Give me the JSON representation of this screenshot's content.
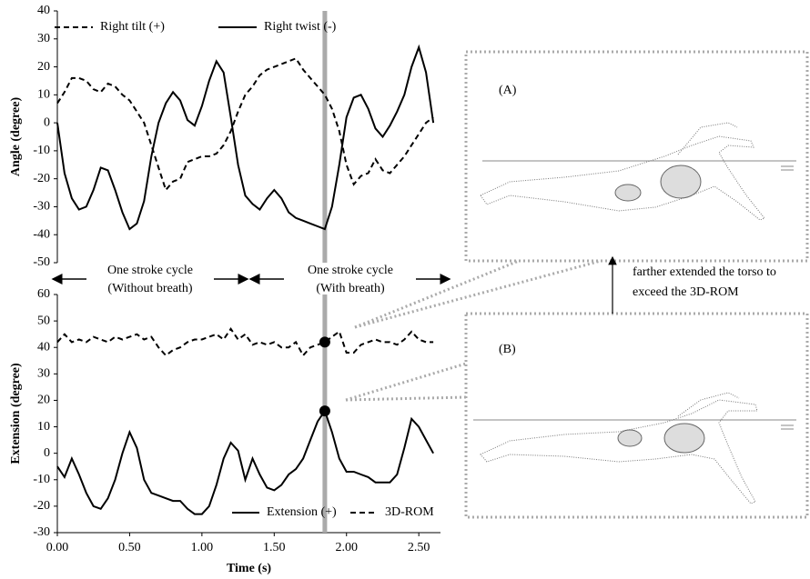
{
  "chart_data": [
    {
      "type": "line",
      "ylabel": "Angle (degree)",
      "x": [
        0,
        0.05,
        0.1,
        0.15,
        0.2,
        0.25,
        0.3,
        0.35,
        0.4,
        0.45,
        0.5,
        0.55,
        0.6,
        0.65,
        0.7,
        0.75,
        0.8,
        0.85,
        0.9,
        0.95,
        1.0,
        1.05,
        1.1,
        1.15,
        1.2,
        1.25,
        1.3,
        1.35,
        1.4,
        1.45,
        1.5,
        1.55,
        1.6,
        1.65,
        1.7,
        1.75,
        1.8,
        1.85,
        1.9,
        1.95,
        2.0,
        2.05,
        2.1,
        2.15,
        2.2,
        2.25,
        2.3,
        2.35,
        2.4,
        2.45,
        2.5,
        2.55,
        2.6
      ],
      "series": [
        {
          "name": "Right tilt (+)",
          "color": "#000000",
          "dash": true,
          "values": [
            7,
            11,
            16,
            16,
            15,
            12,
            11,
            14,
            13,
            10,
            8,
            4,
            0,
            -8,
            -16,
            -24,
            -21,
            -20,
            -14,
            -13,
            -12,
            -12,
            -11,
            -8,
            -3,
            4,
            10,
            13,
            17,
            19,
            20,
            21,
            22,
            23,
            19,
            16,
            13,
            10,
            5,
            -3,
            -15,
            -22,
            -19,
            -18,
            -13,
            -17,
            -18,
            -15,
            -12,
            -8,
            -4,
            0,
            2
          ]
        },
        {
          "name": "Right twist (-)",
          "color": "#000000",
          "dash": false,
          "values": [
            0,
            -18,
            -27,
            -31,
            -30,
            -24,
            -16,
            -17,
            -24,
            -32,
            -38,
            -36,
            -28,
            -12,
            0,
            7,
            11,
            8,
            1,
            -1,
            6,
            15,
            22,
            18,
            2,
            -15,
            -26,
            -29,
            -31,
            -27,
            -24,
            -27,
            -32,
            -34,
            -35,
            -36,
            -37,
            -38,
            -30,
            -15,
            2,
            9,
            10,
            5,
            -2,
            -5,
            -1,
            4,
            10,
            20,
            27,
            18,
            0
          ]
        }
      ],
      "xlim": [
        0,
        2.65
      ],
      "ylim": [
        -50,
        40
      ],
      "yticks": [
        40,
        30,
        20,
        10,
        0,
        -10,
        -20,
        -30,
        -40,
        -50
      ],
      "highlight_x": 1.85,
      "highlight_points": false
    },
    {
      "type": "line",
      "ylabel": "Extension (degree)",
      "xlabel": "Time (s)",
      "x": [
        0,
        0.05,
        0.1,
        0.15,
        0.2,
        0.25,
        0.3,
        0.35,
        0.4,
        0.45,
        0.5,
        0.55,
        0.6,
        0.65,
        0.7,
        0.75,
        0.8,
        0.85,
        0.9,
        0.95,
        1.0,
        1.05,
        1.1,
        1.15,
        1.2,
        1.25,
        1.3,
        1.35,
        1.4,
        1.45,
        1.5,
        1.55,
        1.6,
        1.65,
        1.7,
        1.75,
        1.8,
        1.85,
        1.9,
        1.95,
        2.0,
        2.05,
        2.1,
        2.15,
        2.2,
        2.25,
        2.3,
        2.35,
        2.4,
        2.45,
        2.5,
        2.55,
        2.6
      ],
      "series": [
        {
          "name": "Extension (+)",
          "color": "#000000",
          "dash": false,
          "values": [
            -5,
            -9,
            -2,
            -8,
            -15,
            -20,
            -21,
            -17,
            -10,
            0,
            8,
            2,
            -10,
            -15,
            -16,
            -17,
            -18,
            -18,
            -21,
            -23,
            -23,
            -20,
            -12,
            -2,
            4,
            1,
            -10,
            -2,
            -8,
            -13,
            -14,
            -12,
            -8,
            -6,
            -2,
            5,
            12,
            16,
            8,
            -2,
            -7,
            -7,
            -8,
            -9,
            -11,
            -11,
            -11,
            -8,
            2,
            13,
            10,
            5,
            0
          ]
        },
        {
          "name": "3D-ROM",
          "color": "#000000",
          "dash": true,
          "values": [
            42,
            45,
            42,
            43,
            42,
            44,
            43,
            42,
            44,
            43,
            44,
            45,
            43,
            44,
            40,
            37,
            39,
            40,
            42,
            43,
            43,
            44,
            45,
            43,
            47,
            43,
            45,
            41,
            42,
            41,
            42,
            40,
            40,
            42,
            37,
            40,
            41,
            42,
            44,
            46,
            38,
            38,
            41,
            42,
            43,
            42,
            42,
            41,
            43,
            46,
            43,
            42,
            42
          ]
        }
      ],
      "xlim": [
        0,
        2.65
      ],
      "ylim": [
        -30,
        60
      ],
      "yticks": [
        60,
        50,
        40,
        30,
        20,
        10,
        0,
        -10,
        -20,
        -30
      ],
      "xticks": [
        {
          "value": 0,
          "label": "0.00"
        },
        {
          "value": 0.5,
          "label": "0.50"
        },
        {
          "value": 1,
          "label": "1.00"
        },
        {
          "value": 1.5,
          "label": "1.50"
        },
        {
          "value": 2,
          "label": "2.00"
        },
        {
          "value": 2.5,
          "label": "2.50"
        }
      ],
      "highlight_x": 1.85,
      "highlight_points": true
    }
  ],
  "cycle_labels": [
    {
      "line1": "One stroke cycle",
      "line2": "(Without breath)"
    },
    {
      "line1": "One stroke cycle",
      "line2": "(With breath)"
    }
  ],
  "diagram": {
    "label_a": "(A)",
    "label_b": "(B)",
    "note": [
      "farther extended the torso to",
      "exceed the 3D-ROM"
    ]
  }
}
